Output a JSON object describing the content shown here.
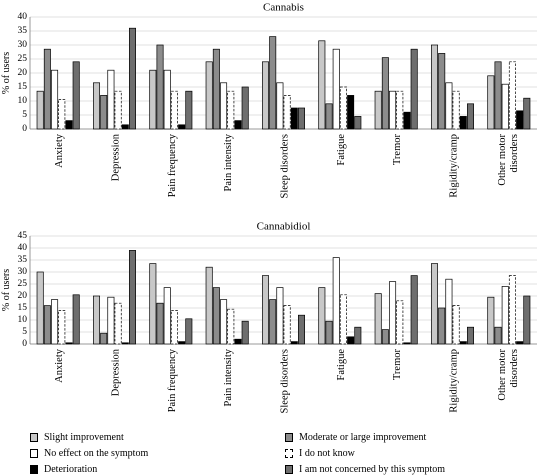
{
  "chart_data": [
    {
      "type": "bar",
      "title": "Cannabis",
      "ylabel": "% of users",
      "ylim": [
        0,
        40
      ],
      "yticks": [
        0,
        5,
        10,
        15,
        20,
        25,
        30,
        35,
        40
      ],
      "categories": [
        "Anxiety",
        "Depression",
        "Pain frequency",
        "Pain intensity",
        "Sleep disorders",
        "Fatigue",
        "Tremor",
        "Rigidity/cramp",
        "Other motor disorders"
      ],
      "series": [
        {
          "name": "Slight improvement",
          "values": [
            13.5,
            16.5,
            21,
            24,
            24,
            31.5,
            13.5,
            30,
            19
          ]
        },
        {
          "name": "Moderate or large improvement",
          "values": [
            28.5,
            12,
            30,
            28.5,
            33,
            9,
            25.5,
            27,
            24
          ]
        },
        {
          "name": "No effect on the symptom",
          "values": [
            21,
            21,
            21,
            16.5,
            16.5,
            28.5,
            13.5,
            16.5,
            16
          ]
        },
        {
          "name": "I do not know",
          "values": [
            10.5,
            13.5,
            13.5,
            13.5,
            12,
            15,
            13.5,
            13.5,
            24
          ]
        },
        {
          "name": "Deterioration",
          "values": [
            3,
            1.5,
            1.5,
            3,
            7.5,
            12,
            6,
            4.5,
            6.5
          ]
        },
        {
          "name": "I am not concerned by this symptom",
          "values": [
            24,
            36,
            13.5,
            15,
            7.5,
            4.5,
            28.5,
            9,
            11
          ]
        }
      ]
    },
    {
      "type": "bar",
      "title": "Cannabidiol",
      "ylabel": "% of users",
      "ylim": [
        0,
        45
      ],
      "yticks": [
        0,
        5,
        10,
        15,
        20,
        25,
        30,
        35,
        40,
        45
      ],
      "categories": [
        "Anxiety",
        "Depression",
        "Pain frequency",
        "Pain intensity",
        "Sleep disorders",
        "Fatigue",
        "Tremor",
        "Rigidity/cramp",
        "Other motor disorders"
      ],
      "series": [
        {
          "name": "Slight improvement",
          "values": [
            30,
            20,
            33.5,
            32,
            28.5,
            23.5,
            21,
            33.5,
            19.5
          ]
        },
        {
          "name": "Moderate or large improvement",
          "values": [
            16,
            4.5,
            17,
            23.5,
            18.5,
            9.5,
            6,
            15,
            7
          ]
        },
        {
          "name": "No effect on the symptom",
          "values": [
            18.5,
            19.5,
            23.5,
            18.5,
            23.5,
            36,
            26,
            27,
            24
          ]
        },
        {
          "name": "I do not know",
          "values": [
            14,
            17,
            14,
            14.5,
            16,
            20.5,
            18,
            16,
            28.5
          ]
        },
        {
          "name": "Deterioration",
          "values": [
            0.5,
            0.5,
            1,
            2,
            1,
            3,
            0.5,
            1,
            1
          ]
        },
        {
          "name": "I am not concerned by this symptom",
          "values": [
            20.5,
            39,
            10.5,
            9.5,
            12,
            7,
            28.5,
            7,
            20
          ]
        }
      ]
    }
  ],
  "legend": [
    {
      "label": "Slight improvement",
      "fill": "#c8c8c8",
      "dashed": false
    },
    {
      "label": "Moderate or large improvement",
      "fill": "#8c8c8c",
      "dashed": false
    },
    {
      "label": "No effect on the symptom",
      "fill": "#ffffff",
      "dashed": false
    },
    {
      "label": "I do not know",
      "fill": "#ffffff",
      "dashed": true
    },
    {
      "label": "Deterioration",
      "fill": "#000000",
      "dashed": false
    },
    {
      "label": "I am not concerned by this symptom",
      "fill": "#6e6e6e",
      "dashed": false
    }
  ]
}
